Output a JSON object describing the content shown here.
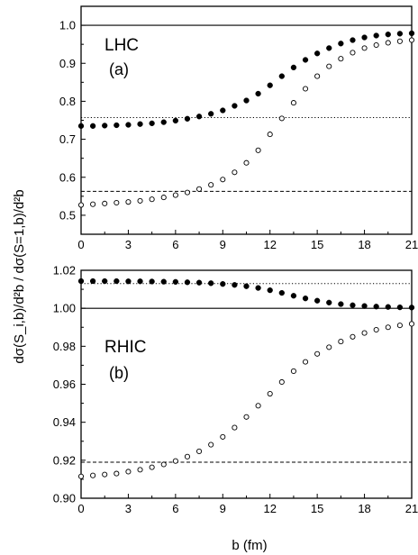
{
  "chart_data": [
    {
      "type": "scatter",
      "panel_label": "LHC",
      "panel_tag": "(a)",
      "xlabel": "b (fm)",
      "ylabel": "dσ(S_i,b)/d²b / dσ(S=1,b)/d²b",
      "xlim": [
        0,
        21
      ],
      "ylim": [
        0.45,
        1.05
      ],
      "xticks": [
        "0",
        "3",
        "6",
        "9",
        "12",
        "15",
        "18",
        "21"
      ],
      "yticks": [
        "0.5",
        "0.6",
        "0.7",
        "0.8",
        "0.9",
        "1.0"
      ],
      "grid": false,
      "series": [
        {
          "marker": "filled-circle",
          "x": [
            0,
            0.75,
            1.5,
            2.25,
            3,
            3.75,
            4.5,
            5.25,
            6,
            6.75,
            7.5,
            8.25,
            9,
            9.75,
            10.5,
            11.25,
            12,
            12.75,
            13.5,
            14.25,
            15,
            15.75,
            16.5,
            17.25,
            18,
            18.75,
            19.5,
            20.25,
            21
          ],
          "y": [
            0.735,
            0.735,
            0.736,
            0.737,
            0.738,
            0.74,
            0.742,
            0.745,
            0.749,
            0.754,
            0.76,
            0.767,
            0.776,
            0.788,
            0.802,
            0.82,
            0.842,
            0.866,
            0.889,
            0.909,
            0.926,
            0.94,
            0.952,
            0.961,
            0.968,
            0.973,
            0.976,
            0.978,
            0.979
          ]
        },
        {
          "marker": "open-circle",
          "x": [
            0,
            0.75,
            1.5,
            2.25,
            3,
            3.75,
            4.5,
            5.25,
            6,
            6.75,
            7.5,
            8.25,
            9,
            9.75,
            10.5,
            11.25,
            12,
            12.75,
            13.5,
            14.25,
            15,
            15.75,
            16.5,
            17.25,
            18,
            18.75,
            19.5,
            20.25,
            21
          ],
          "y": [
            0.527,
            0.529,
            0.531,
            0.533,
            0.535,
            0.538,
            0.542,
            0.547,
            0.553,
            0.56,
            0.569,
            0.58,
            0.594,
            0.613,
            0.638,
            0.671,
            0.713,
            0.755,
            0.796,
            0.833,
            0.866,
            0.892,
            0.912,
            0.928,
            0.94,
            0.948,
            0.954,
            0.958,
            0.961
          ]
        }
      ],
      "reference_lines": [
        {
          "y": 1.0,
          "style": "solid"
        },
        {
          "y": 0.757,
          "style": "dotted"
        },
        {
          "y": 0.563,
          "style": "dashed"
        }
      ]
    },
    {
      "type": "scatter",
      "panel_label": "RHIC",
      "panel_tag": "(b)",
      "xlabel": "b (fm)",
      "ylabel": "dσ(S_i,b)/d²b / dσ(S=1,b)/d²b",
      "xlim": [
        0,
        21
      ],
      "ylim": [
        0.9,
        1.02
      ],
      "xticks": [
        "0",
        "3",
        "6",
        "9",
        "12",
        "15",
        "18",
        "21"
      ],
      "yticks": [
        "0.90",
        "0.92",
        "0.94",
        "0.96",
        "0.98",
        "1.00",
        "1.02"
      ],
      "grid": false,
      "series": [
        {
          "marker": "filled-circle",
          "x": [
            0,
            0.75,
            1.5,
            2.25,
            3,
            3.75,
            4.5,
            5.25,
            6,
            6.75,
            7.5,
            8.25,
            9,
            9.75,
            10.5,
            11.25,
            12,
            12.75,
            13.5,
            14.25,
            15,
            15.75,
            16.5,
            17.25,
            18,
            18.75,
            19.5,
            20.25,
            21
          ],
          "y": [
            1.0143,
            1.0143,
            1.0143,
            1.0143,
            1.0142,
            1.0142,
            1.0141,
            1.014,
            1.0139,
            1.0137,
            1.0135,
            1.0132,
            1.0128,
            1.0123,
            1.0116,
            1.0107,
            1.0095,
            1.0081,
            1.0066,
            1.0052,
            1.004,
            1.003,
            1.0022,
            1.0016,
            1.0012,
            1.0009,
            1.0007,
            1.0005,
            1.0004
          ]
        },
        {
          "marker": "open-circle",
          "x": [
            0,
            0.75,
            1.5,
            2.25,
            3,
            3.75,
            4.5,
            5.25,
            6,
            6.75,
            7.5,
            8.25,
            9,
            9.75,
            10.5,
            11.25,
            12,
            12.75,
            13.5,
            14.25,
            15,
            15.75,
            16.5,
            17.25,
            18,
            18.75,
            19.5,
            20.25,
            21
          ],
          "y": [
            0.9115,
            0.912,
            0.9125,
            0.913,
            0.914,
            0.915,
            0.9163,
            0.9178,
            0.9196,
            0.9219,
            0.9247,
            0.9282,
            0.9323,
            0.9372,
            0.9428,
            0.9487,
            0.955,
            0.9612,
            0.9669,
            0.9718,
            0.976,
            0.9795,
            0.9825,
            0.985,
            0.987,
            0.9887,
            0.99,
            0.991,
            0.9918
          ]
        }
      ],
      "reference_lines": [
        {
          "y": 1.0,
          "style": "solid"
        },
        {
          "y": 1.013,
          "style": "dotted"
        },
        {
          "y": 0.919,
          "style": "dashed"
        }
      ]
    }
  ]
}
